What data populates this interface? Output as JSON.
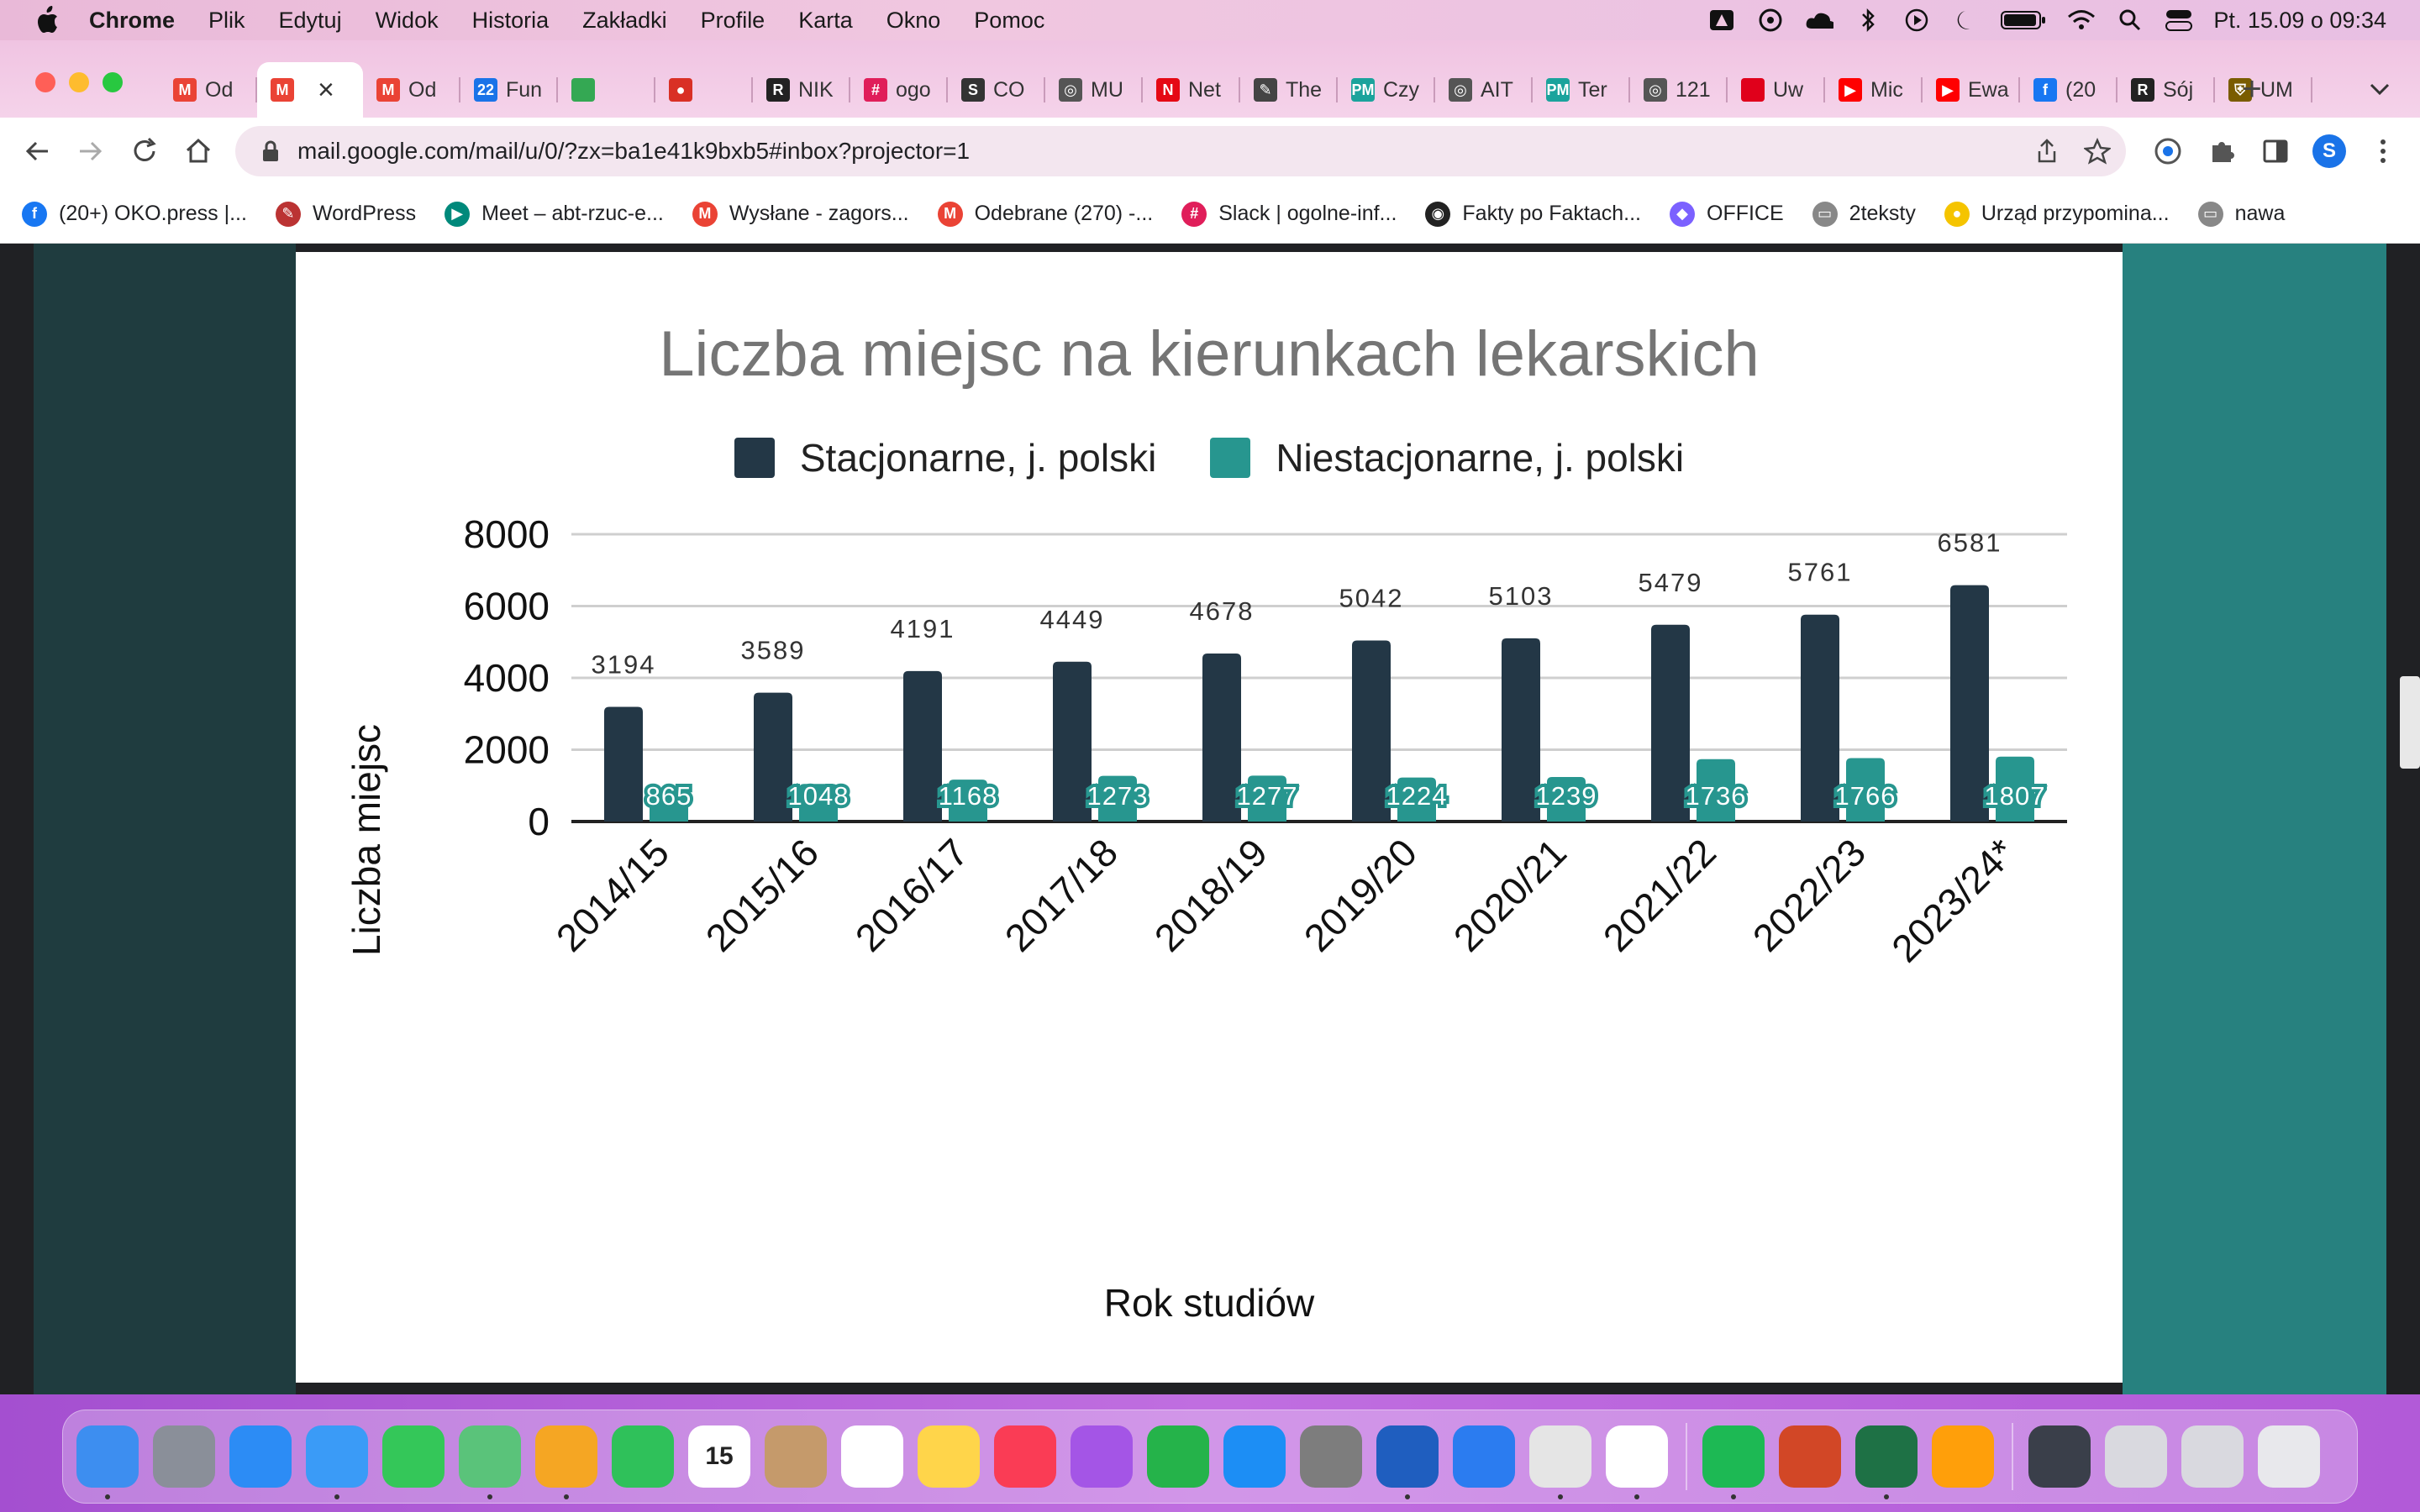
{
  "menubar": {
    "items": [
      "Chrome",
      "Plik",
      "Edytuj",
      "Widok",
      "Historia",
      "Zakładki",
      "Profile",
      "Karta",
      "Okno",
      "Pomoc"
    ],
    "clock": "Pt. 15.09 o  09:34"
  },
  "tabs": [
    {
      "label": "Od",
      "color": "#ea4335",
      "glyph": "M"
    },
    {
      "label": "×",
      "color": "#ea4335",
      "glyph": "M",
      "active": true
    },
    {
      "label": "Od",
      "color": "#ea4335",
      "glyph": "M"
    },
    {
      "label": "Fun",
      "color": "#1a73e8",
      "glyph": "22"
    },
    {
      "label": "",
      "color": "#34a853",
      "glyph": ""
    },
    {
      "label": "",
      "color": "#d93025",
      "glyph": "●"
    },
    {
      "label": "NIK",
      "color": "#222222",
      "glyph": "R"
    },
    {
      "label": "ogo",
      "color": "#e01e5a",
      "glyph": "#"
    },
    {
      "label": "CO",
      "color": "#333333",
      "glyph": "S"
    },
    {
      "label": "MU",
      "color": "#555555",
      "glyph": "◎"
    },
    {
      "label": "Net",
      "color": "#e50914",
      "glyph": "N"
    },
    {
      "label": "The",
      "color": "#444444",
      "glyph": "✎"
    },
    {
      "label": "Czy",
      "color": "#1ba39c",
      "glyph": "PM"
    },
    {
      "label": "AIT",
      "color": "#555555",
      "glyph": "◎"
    },
    {
      "label": "Ter",
      "color": "#1ba39c",
      "glyph": "PM"
    },
    {
      "label": "121",
      "color": "#555555",
      "glyph": "◎"
    },
    {
      "label": "Uw",
      "color": "#e0001b",
      "glyph": ""
    },
    {
      "label": "Mic",
      "color": "#ff0000",
      "glyph": "▶"
    },
    {
      "label": "Ewa",
      "color": "#ff0000",
      "glyph": "▶"
    },
    {
      "label": "(20",
      "color": "#1877f2",
      "glyph": "f"
    },
    {
      "label": "Sój",
      "color": "#222222",
      "glyph": "R"
    },
    {
      "label": "UM",
      "color": "#7a5c00",
      "glyph": "⛨"
    }
  ],
  "address": {
    "url": "mail.google.com/mail/u/0/?zx=ba1e41k9bxb5#inbox?projector=1"
  },
  "profile_initial": "S",
  "bookmarks": [
    {
      "label": "(20+) OKO.press |...",
      "color": "#1877f2",
      "glyph": "f"
    },
    {
      "label": "WordPress",
      "color": "#b33",
      "glyph": "✎"
    },
    {
      "label": "Meet – abt-rzuc-e...",
      "color": "#00897b",
      "glyph": "▶"
    },
    {
      "label": "Wysłane - zagors...",
      "color": "#ea4335",
      "glyph": "M"
    },
    {
      "label": "Odebrane (270) -...",
      "color": "#ea4335",
      "glyph": "M"
    },
    {
      "label": "Slack | ogolne-inf...",
      "color": "#e01e5a",
      "glyph": "#"
    },
    {
      "label": "Fakty po Faktach...",
      "color": "#222",
      "glyph": "◉"
    },
    {
      "label": "OFFICE",
      "color": "#7b61ff",
      "glyph": "◆"
    },
    {
      "label": "2teksty",
      "color": "#888",
      "glyph": "▭"
    },
    {
      "label": "Urząd przypomina...",
      "color": "#f5c400",
      "glyph": "●"
    },
    {
      "label": "nawa",
      "color": "#888",
      "glyph": "▭"
    }
  ],
  "colors": {
    "stacjonarne": "#233746",
    "niestacjonarne": "#27968f"
  },
  "chart_data": {
    "type": "bar",
    "title": "Liczba miejsc na kierunkach lekarskich",
    "xlabel": "Rok studiów",
    "ylabel": "Liczba miejsc",
    "ylim": [
      0,
      8000
    ],
    "yticks": [
      0,
      2000,
      4000,
      6000,
      8000
    ],
    "grid": true,
    "legend": "top",
    "categories": [
      "2014/15",
      "2015/16",
      "2016/17",
      "2017/18",
      "2018/19",
      "2019/20",
      "2020/21",
      "2021/22",
      "2022/23",
      "2023/24*"
    ],
    "series": [
      {
        "name": "Stacjonarne, j. polski",
        "values": [
          3194,
          3589,
          4191,
          4449,
          4678,
          5042,
          5103,
          5479,
          5761,
          6581
        ]
      },
      {
        "name": "Niestacjonarne, j. polski",
        "values": [
          865,
          1048,
          1168,
          1273,
          1277,
          1224,
          1239,
          1736,
          1766,
          1807
        ]
      }
    ]
  },
  "dock": [
    {
      "name": "finder-icon",
      "color": "#3d8ef0",
      "dot": true
    },
    {
      "name": "launchpad-icon",
      "color": "#8a8f99",
      "dot": false
    },
    {
      "name": "safari-icon",
      "color": "#2c8cf5",
      "dot": false
    },
    {
      "name": "mail-icon",
      "color": "#3a9bf7",
      "dot": true
    },
    {
      "name": "messages-icon",
      "color": "#34c759",
      "dot": false
    },
    {
      "name": "maps-icon",
      "color": "#5ac37a",
      "dot": true
    },
    {
      "name": "photos-icon",
      "color": "#f5a623",
      "dot": true
    },
    {
      "name": "facetime-icon",
      "color": "#2fc15a",
      "dot": false
    },
    {
      "name": "calendar-icon",
      "color": "#ffffff",
      "dot": false,
      "text": "15"
    },
    {
      "name": "contacts-icon",
      "color": "#c59a6b",
      "dot": false
    },
    {
      "name": "reminders-icon",
      "color": "#ffffff",
      "dot": false
    },
    {
      "name": "notes-icon",
      "color": "#ffd54a",
      "dot": false
    },
    {
      "name": "music-icon",
      "color": "#fa3c55",
      "dot": false
    },
    {
      "name": "podcasts-icon",
      "color": "#a455e6",
      "dot": false
    },
    {
      "name": "numbers-icon",
      "color": "#25b34a",
      "dot": false
    },
    {
      "name": "app-store-icon",
      "color": "#1c8ef5",
      "dot": false
    },
    {
      "name": "system-settings-icon",
      "color": "#7d7d7d",
      "dot": false
    },
    {
      "name": "word-icon",
      "color": "#1f5ebf",
      "dot": true
    },
    {
      "name": "keynote-icon",
      "color": "#2b7cf0",
      "dot": false
    },
    {
      "name": "chrome-icon",
      "color": "#e5e5e5",
      "dot": true
    },
    {
      "name": "slack-icon",
      "color": "#ffffff",
      "dot": true
    },
    {
      "name": "spotify-icon",
      "color": "#1db954",
      "dot": true
    },
    {
      "name": "powerpoint-icon",
      "color": "#d24726",
      "dot": false
    },
    {
      "name": "excel-icon",
      "color": "#1e7145",
      "dot": true
    },
    {
      "name": "books-icon",
      "color": "#ff9f0a",
      "dot": false
    },
    {
      "name": "document-thumbnail-icon",
      "color": "#3a3f4a",
      "dot": false
    },
    {
      "name": "downloads-stack-icon",
      "color": "#d9d9df",
      "dot": false
    },
    {
      "name": "screenshot-stack-icon",
      "color": "#d9d9df",
      "dot": false
    },
    {
      "name": "trash-icon",
      "color": "#e8e8ec",
      "dot": false
    }
  ]
}
